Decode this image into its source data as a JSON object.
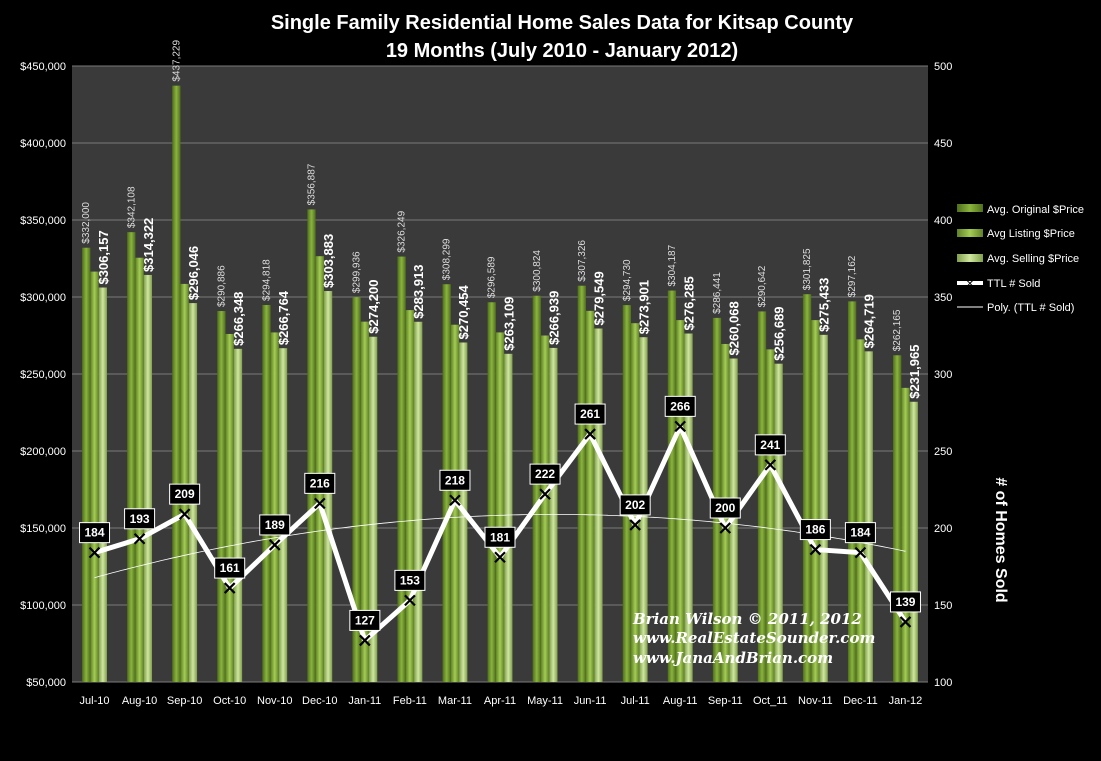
{
  "chart_data": {
    "type": "bar",
    "title": "Single Family Residential Home Sales Data for Kitsap County",
    "subtitle": "19 Months (July  2010 - January 2012)",
    "categories": [
      "Jul-10",
      "Aug-10",
      "Sep-10",
      "Oct-10",
      "Nov-10",
      "Dec-10",
      "Jan-11",
      "Feb-11",
      "Mar-11",
      "Apr-11",
      "May-11",
      "Jun-11",
      "Jul-11",
      "Aug-11",
      "Sep-11",
      "Oct_11",
      "Nov-11",
      "Dec-11",
      "Jan-12"
    ],
    "ylim": [
      50000,
      450000
    ],
    "y2lim": [
      100,
      500
    ],
    "y_ticks": [
      "$50,000",
      "$100,000",
      "$150,000",
      "$200,000",
      "$250,000",
      "$300,000",
      "$350,000",
      "$400,000",
      "$450,000"
    ],
    "y2_ticks": [
      "100",
      "150",
      "200",
      "250",
      "300",
      "350",
      "400",
      "450",
      "500"
    ],
    "y2label": "# of Homes Sold",
    "series": [
      {
        "name": "Avg. Original $Price",
        "color": "#7ea33a",
        "values": [
          332000,
          342108,
          437229,
          290886,
          294818,
          356887,
          299936,
          326249,
          308299,
          296589,
          300824,
          307326,
          294730,
          304187,
          286441,
          290642,
          301825,
          297162,
          262165
        ],
        "labels": [
          "$332,000",
          "$342,108",
          "$437,229",
          "$290,886",
          "$294,818",
          "$356,887",
          "$299,936",
          "$326,249",
          "$308,299",
          "$296,589",
          "$300,824",
          "$307,326",
          "$294,730",
          "$304,187",
          "$286,441",
          "$290,642",
          "$301,825",
          "$297,162",
          "$262,165"
        ]
      },
      {
        "name": "Avg Listing $Price",
        "color": "#94bd4b",
        "values": [
          316500,
          325500,
          308500,
          276000,
          277000,
          326500,
          284000,
          291500,
          282000,
          277000,
          275000,
          291000,
          283000,
          285000,
          269500,
          266000,
          285000,
          272500,
          241000
        ]
      },
      {
        "name": "Avg. Selling $Price",
        "color": "#b9d880",
        "values": [
          306157,
          314322,
          296046,
          266348,
          266764,
          303883,
          274200,
          283913,
          270454,
          263109,
          266939,
          279549,
          273901,
          276285,
          260068,
          256689,
          275433,
          264719,
          231965
        ],
        "labels": [
          "$306,157",
          "$314,322",
          "$296,046",
          "$266,348",
          "$266,764",
          "$303,883",
          "$274,200",
          "$283,913",
          "$270,454",
          "$263,109",
          "$266,939",
          "$279,549",
          "$273,901",
          "$276,285",
          "$260,068",
          "$256,689",
          "$275,433",
          "$264,719",
          "$231,965"
        ]
      },
      {
        "name": "TTL # Sold",
        "type": "line",
        "axis": "right",
        "values": [
          184,
          193,
          209,
          161,
          189,
          216,
          127,
          153,
          218,
          181,
          222,
          261,
          202,
          266,
          200,
          241,
          186,
          184,
          139
        ],
        "labels": [
          "184",
          "193",
          "209",
          "161",
          "189",
          "216",
          "127",
          "153",
          "218",
          "181",
          "222",
          "261",
          "202",
          "266",
          "200",
          "241",
          "186",
          "184",
          "139"
        ]
      },
      {
        "name": "Poly. (TTL # Sold)",
        "type": "trendline",
        "axis": "right",
        "fit": "polynomial"
      }
    ],
    "credit_lines": [
      "Brian Wilson  © 2011, 2012",
      "www.RealEstateSounder.com",
      "www.JanaAndBrian.com"
    ],
    "legend_placement": "right",
    "grid": true,
    "colors": {
      "background": "#000000",
      "plot_area": "#3a3a3a",
      "grid": "#7a7a7a"
    }
  }
}
